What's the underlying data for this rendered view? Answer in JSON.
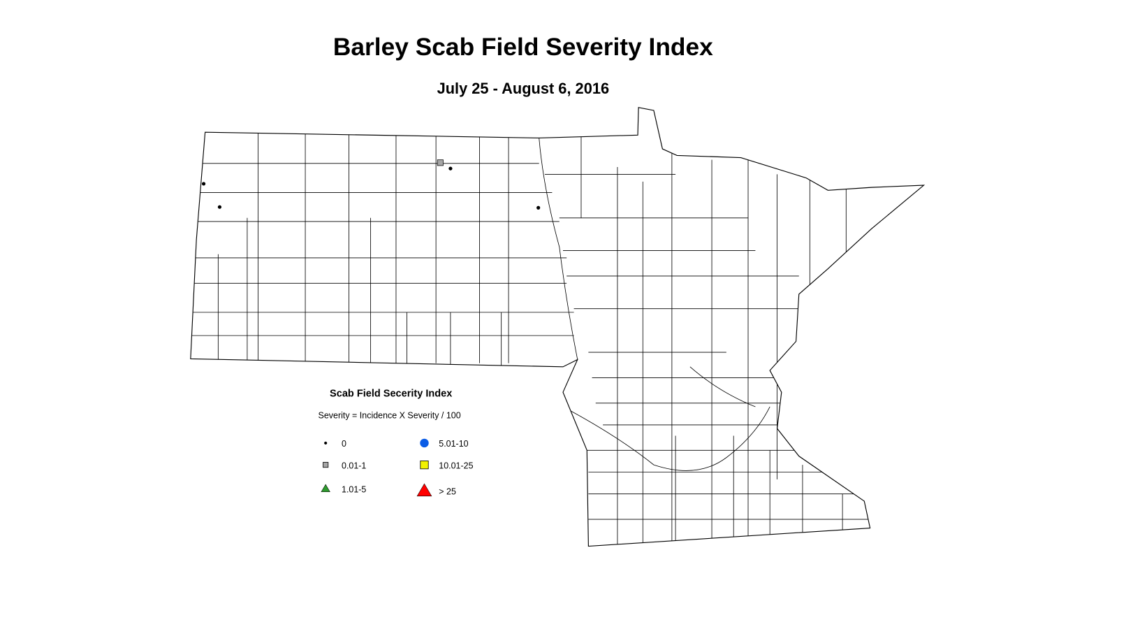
{
  "header": {
    "title": "Barley Scab Field Severity Index",
    "subtitle": "July 25 - August 6, 2016"
  },
  "legend": {
    "title": "Scab Field Secerity Index",
    "subtitle": "Severity = Incidence X Severity / 100",
    "items": [
      {
        "label": "0",
        "shape": "dot",
        "color": "#000000"
      },
      {
        "label": "0.01-1",
        "shape": "square",
        "color": "#a6a6a6"
      },
      {
        "label": "1.01-5",
        "shape": "triangle",
        "color": "#2e9b2e"
      },
      {
        "label": "5.01-10",
        "shape": "circle",
        "color": "#0a5ce6"
      },
      {
        "label": "10.01-25",
        "shape": "square",
        "color": "#f2f200"
      },
      {
        "label": "> 25",
        "shape": "triangle",
        "color": "#ff0000"
      }
    ]
  }
}
